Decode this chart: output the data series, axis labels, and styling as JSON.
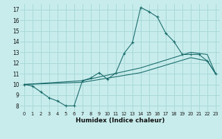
{
  "background_color": "#c8ecec",
  "grid_color": "#a8d8d8",
  "line_color": "#1a6b6b",
  "xlabel": "Humidex (Indice chaleur)",
  "xlim": [
    -0.5,
    23.5
  ],
  "ylim": [
    7.5,
    17.5
  ],
  "xtick_vals": [
    0,
    1,
    2,
    3,
    4,
    5,
    6,
    7,
    8,
    9,
    10,
    11,
    12,
    13,
    14,
    15,
    16,
    17,
    18,
    19,
    20,
    21,
    22,
    23
  ],
  "ytick_vals": [
    8,
    9,
    10,
    11,
    12,
    13,
    14,
    15,
    16,
    17
  ],
  "line1_x": [
    0,
    1,
    2,
    3,
    4,
    5,
    6,
    7,
    8,
    9,
    10,
    11,
    12,
    13,
    14,
    15,
    16,
    17,
    18,
    19,
    20,
    21,
    22,
    23
  ],
  "line1_y": [
    10.0,
    9.85,
    9.3,
    8.75,
    8.45,
    8.0,
    8.0,
    10.35,
    10.6,
    11.1,
    10.5,
    11.05,
    12.9,
    13.9,
    17.2,
    16.8,
    16.3,
    14.8,
    14.0,
    12.8,
    12.8,
    12.8,
    12.2,
    11.0
  ],
  "line2_x": [
    0,
    7,
    14,
    20,
    22,
    23
  ],
  "line2_y": [
    10.0,
    10.35,
    11.55,
    13.0,
    12.8,
    11.0
  ],
  "line3_x": [
    0,
    7,
    14,
    20,
    22,
    23
  ],
  "line3_y": [
    10.0,
    10.2,
    11.1,
    12.5,
    12.2,
    11.0
  ]
}
